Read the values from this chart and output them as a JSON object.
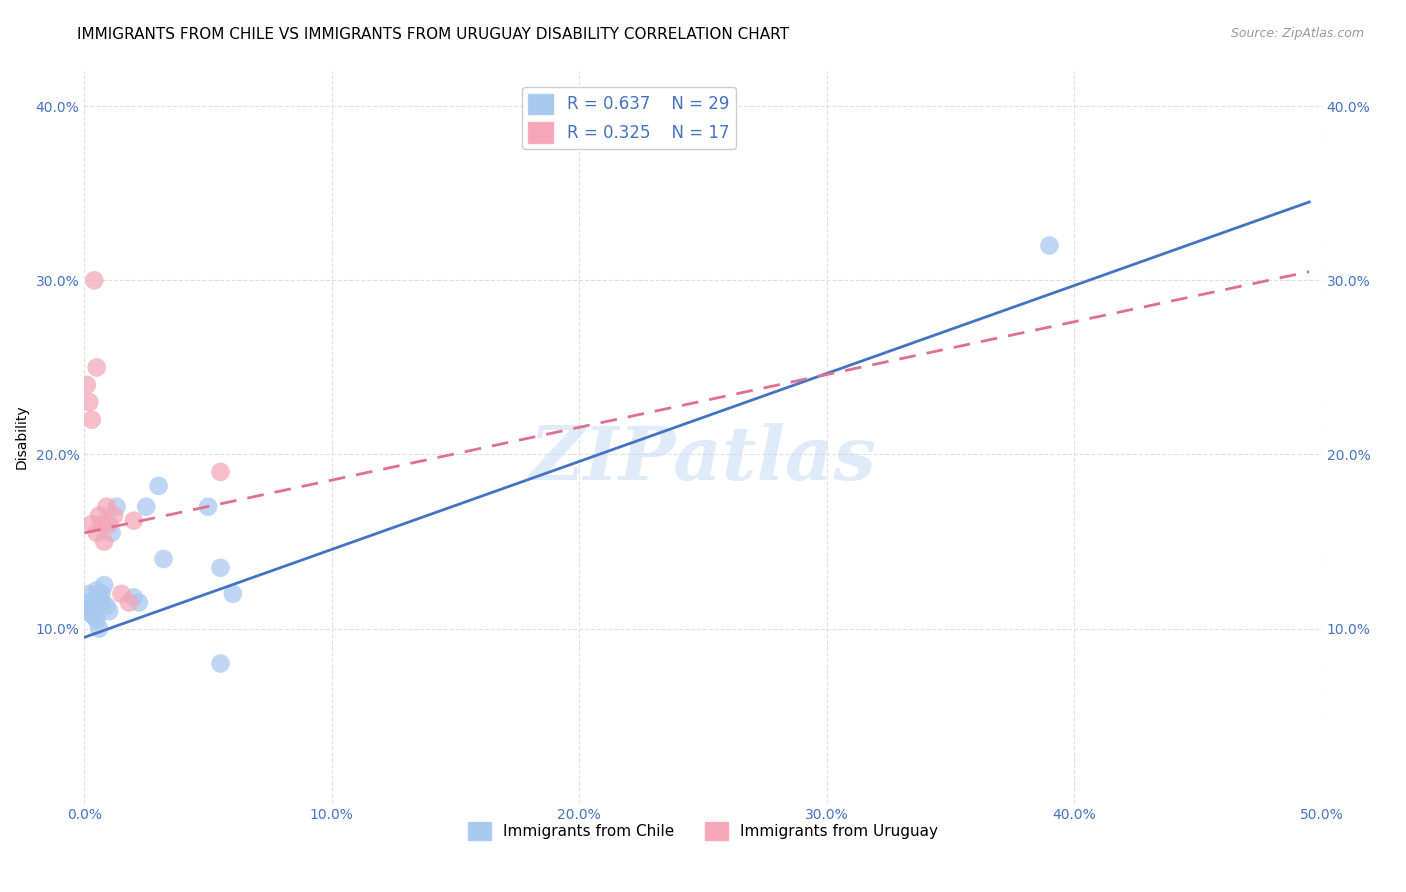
{
  "title": "IMMIGRANTS FROM CHILE VS IMMIGRANTS FROM URUGUAY DISABILITY CORRELATION CHART",
  "source": "Source: ZipAtlas.com",
  "ylabel": "Disability",
  "xlim": [
    0.0,
    0.5
  ],
  "ylim": [
    0.0,
    0.42
  ],
  "xticks": [
    0.0,
    0.1,
    0.2,
    0.3,
    0.4,
    0.5
  ],
  "yticks": [
    0.0,
    0.1,
    0.2,
    0.3,
    0.4
  ],
  "xtick_labels": [
    "0.0%",
    "10.0%",
    "20.0%",
    "30.0%",
    "40.0%",
    "50.0%"
  ],
  "ytick_labels": [
    "",
    "10.0%",
    "20.0%",
    "30.0%",
    "40.0%"
  ],
  "right_ytick_labels": [
    "10.0%",
    "20.0%",
    "30.0%",
    "40.0%"
  ],
  "right_yticks": [
    0.1,
    0.2,
    0.3,
    0.4
  ],
  "chile_color": "#A8C8F0",
  "uruguay_color": "#F4A7B9",
  "chile_line_color": "#4472C4",
  "uruguay_line_color": "#E07090",
  "legend_label_chile": "Immigrants from Chile",
  "legend_label_uruguay": "Immigrants from Uruguay",
  "chile_x": [
    0.001,
    0.002,
    0.002,
    0.003,
    0.003,
    0.004,
    0.004,
    0.005,
    0.005,
    0.005,
    0.006,
    0.006,
    0.007,
    0.007,
    0.008,
    0.009,
    0.01,
    0.011,
    0.013,
    0.02,
    0.022,
    0.025,
    0.03,
    0.032,
    0.05,
    0.055,
    0.06,
    0.055,
    0.39
  ],
  "chile_y": [
    0.115,
    0.11,
    0.12,
    0.112,
    0.108,
    0.115,
    0.107,
    0.122,
    0.105,
    0.113,
    0.118,
    0.1,
    0.115,
    0.12,
    0.125,
    0.113,
    0.11,
    0.155,
    0.17,
    0.118,
    0.115,
    0.17,
    0.182,
    0.14,
    0.17,
    0.135,
    0.12,
    0.08,
    0.32
  ],
  "uruguay_x": [
    0.001,
    0.002,
    0.003,
    0.003,
    0.004,
    0.005,
    0.005,
    0.006,
    0.007,
    0.008,
    0.009,
    0.01,
    0.012,
    0.015,
    0.018,
    0.02,
    0.055
  ],
  "uruguay_y": [
    0.24,
    0.23,
    0.22,
    0.16,
    0.3,
    0.25,
    0.155,
    0.165,
    0.16,
    0.15,
    0.17,
    0.16,
    0.165,
    0.12,
    0.115,
    0.162,
    0.19
  ],
  "grid_color": "#DDDDDD",
  "background_color": "#FFFFFF",
  "title_fontsize": 11,
  "axis_label_fontsize": 10,
  "tick_fontsize": 10,
  "legend_fontsize": 12
}
